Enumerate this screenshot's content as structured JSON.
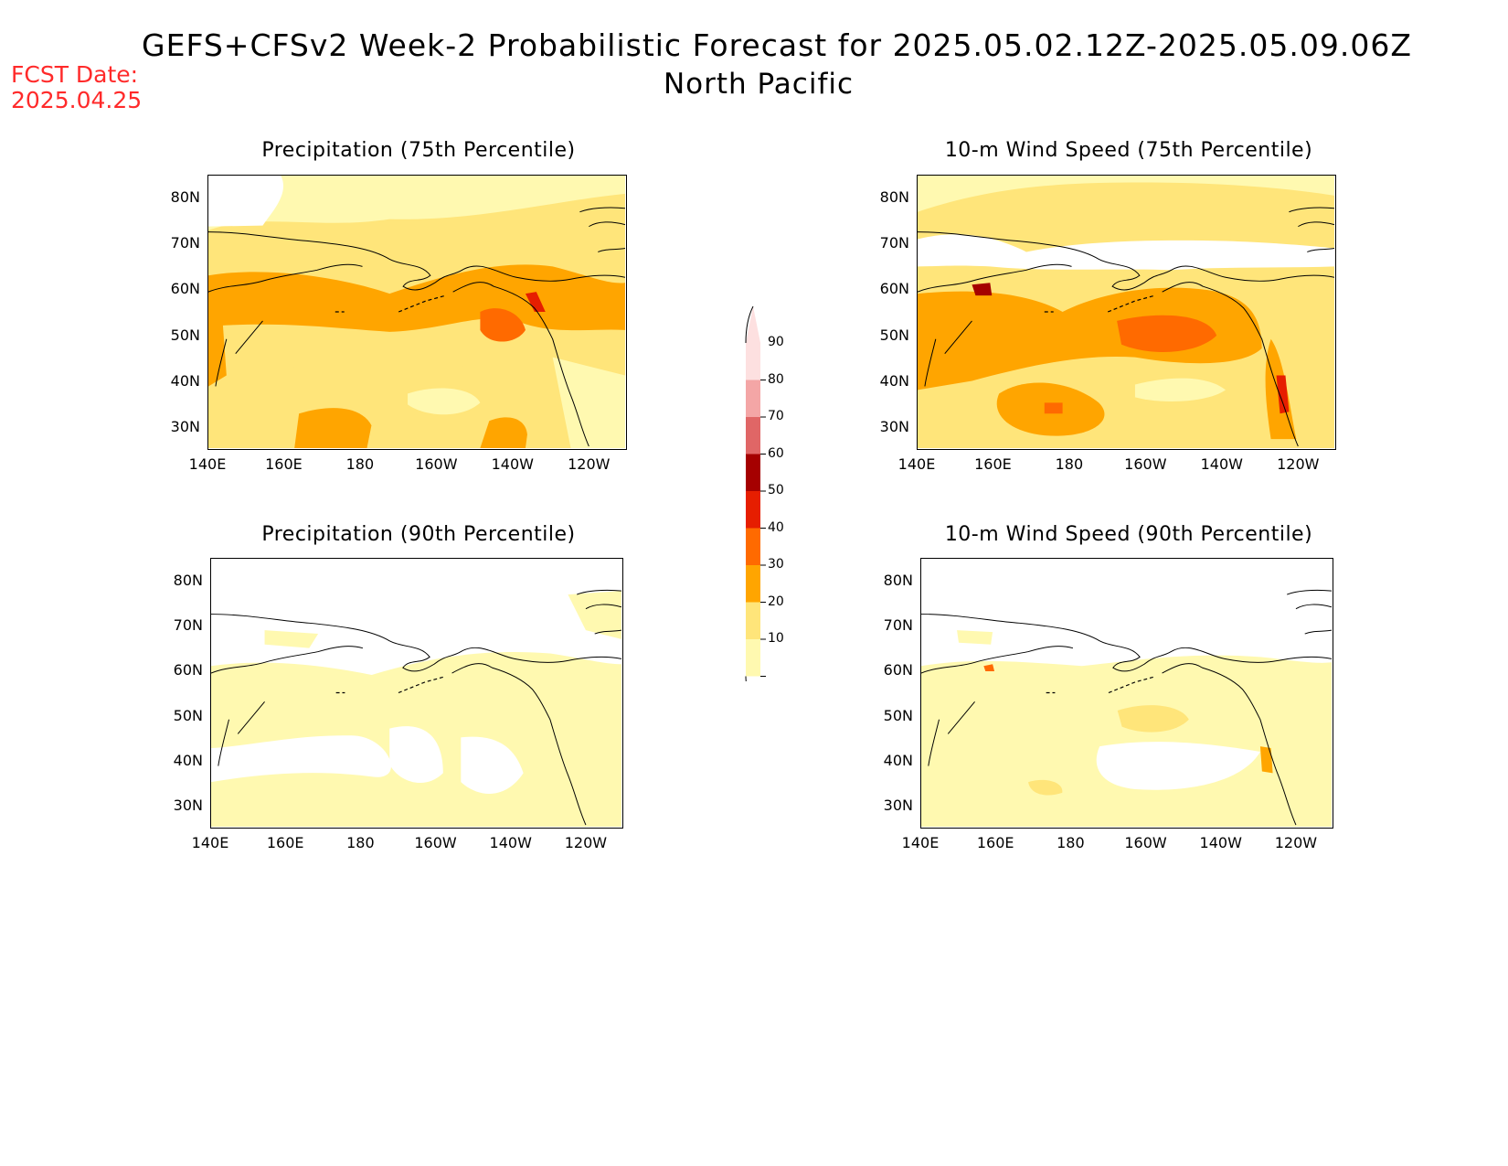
{
  "header": {
    "title": "GEFS+CFSv2 Week-2 Probabilistic Forecast for 2025.05.02.12Z-2025.05.09.06Z",
    "subtitle": "North Pacific",
    "fcst_label": "FCST Date:",
    "fcst_date": "2025.04.25"
  },
  "panels": [
    {
      "id": "p75",
      "title": "Precipitation (75th Percentile)"
    },
    {
      "id": "w75",
      "title": "10-m Wind Speed (75th Percentile)"
    },
    {
      "id": "p90",
      "title": "Precipitation (90th Percentile)"
    },
    {
      "id": "w90",
      "title": "10-m Wind Speed (90th Percentile)"
    }
  ],
  "axes": {
    "lat_labels": [
      "80N",
      "70N",
      "60N",
      "50N",
      "40N",
      "30N"
    ],
    "lon_labels": [
      "140E",
      "160E",
      "180",
      "160W",
      "140W",
      "120W"
    ]
  },
  "colorbar": {
    "levels": [
      "10",
      "20",
      "30",
      "40",
      "50",
      "60",
      "70",
      "80",
      "90"
    ],
    "colors": [
      "#fff9b0",
      "#ffe57a",
      "#ffa500",
      "#ff6a00",
      "#e61e00",
      "#a50000",
      "#e06666",
      "#f4a6a6",
      "#fde0e0"
    ]
  }
}
